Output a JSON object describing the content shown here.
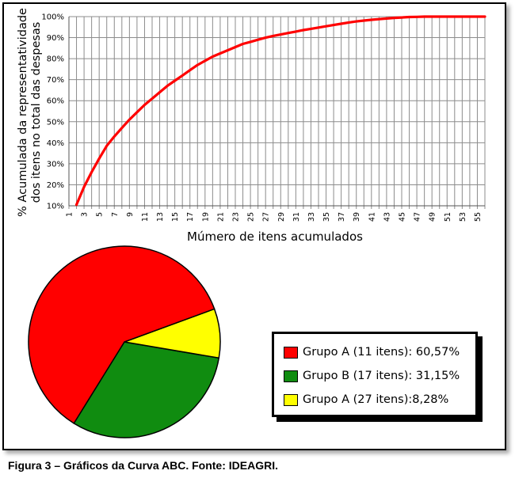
{
  "caption": "Figura 3 – Gráficos da Curva ABC. Fonte: IDEAGRI.",
  "colors": {
    "curve": "#ff0000",
    "grupo_a": "#ff0000",
    "grupo_b": "#108c10",
    "grupo_c": "#ffff00"
  },
  "chart_data": [
    {
      "type": "line",
      "xlabel": "Múmero de itens acumulados",
      "ylabel_lines": [
        "% Acumulada da representatividade",
        "dos itens no total das despesas"
      ],
      "x_ticks": [
        "1",
        "3",
        "5",
        "7",
        "9",
        "11",
        "13",
        "15",
        "17",
        "19",
        "21",
        "23",
        "25",
        "27",
        "29",
        "31",
        "33",
        "35",
        "37",
        "39",
        "41",
        "43",
        "45",
        "47",
        "49",
        "51",
        "53",
        "55"
      ],
      "y_ticks": [
        "10%",
        "20%",
        "30%",
        "40%",
        "50%",
        "60%",
        "70%",
        "80%",
        "90%",
        "100%"
      ],
      "ylim": [
        10,
        100
      ],
      "xlim": [
        1,
        56
      ],
      "grid": true,
      "series": [
        {
          "x": [
            2,
            3,
            4,
            5,
            6,
            7,
            8,
            9,
            10,
            11,
            12,
            13,
            14,
            15,
            16,
            17,
            18,
            19,
            20,
            21,
            22,
            23,
            24,
            25,
            26,
            27,
            28,
            29,
            30,
            31,
            32,
            33,
            34,
            35,
            36,
            37,
            38,
            39,
            40,
            41,
            42,
            43,
            44,
            45,
            46,
            47,
            48,
            49,
            50,
            51,
            52,
            53,
            54,
            55,
            56
          ],
          "y": [
            10.5,
            19,
            26,
            32.5,
            38.5,
            43,
            47,
            51,
            54.5,
            58,
            61,
            64,
            67,
            69.5,
            72,
            74.5,
            77,
            79,
            81,
            82.5,
            84,
            85.5,
            87,
            88,
            89,
            90,
            90.8,
            91.5,
            92.2,
            92.9,
            93.6,
            94.2,
            94.8,
            95.4,
            96,
            96.6,
            97.2,
            97.7,
            98.1,
            98.5,
            98.8,
            99.1,
            99.4,
            99.6,
            99.8,
            99.9,
            100,
            100,
            100,
            100,
            100,
            100,
            100,
            100,
            100
          ]
        }
      ]
    },
    {
      "type": "pie",
      "slices": [
        {
          "label": "Grupo A (11 itens): 60,57%",
          "value": 60.57,
          "color": "#ff0000"
        },
        {
          "label": "Grupo B (17 itens): 31,15%",
          "value": 31.15,
          "color": "#108c10"
        },
        {
          "label": "Grupo A (27 itens):8,28%",
          "value": 8.28,
          "color": "#ffff00"
        }
      ]
    }
  ]
}
